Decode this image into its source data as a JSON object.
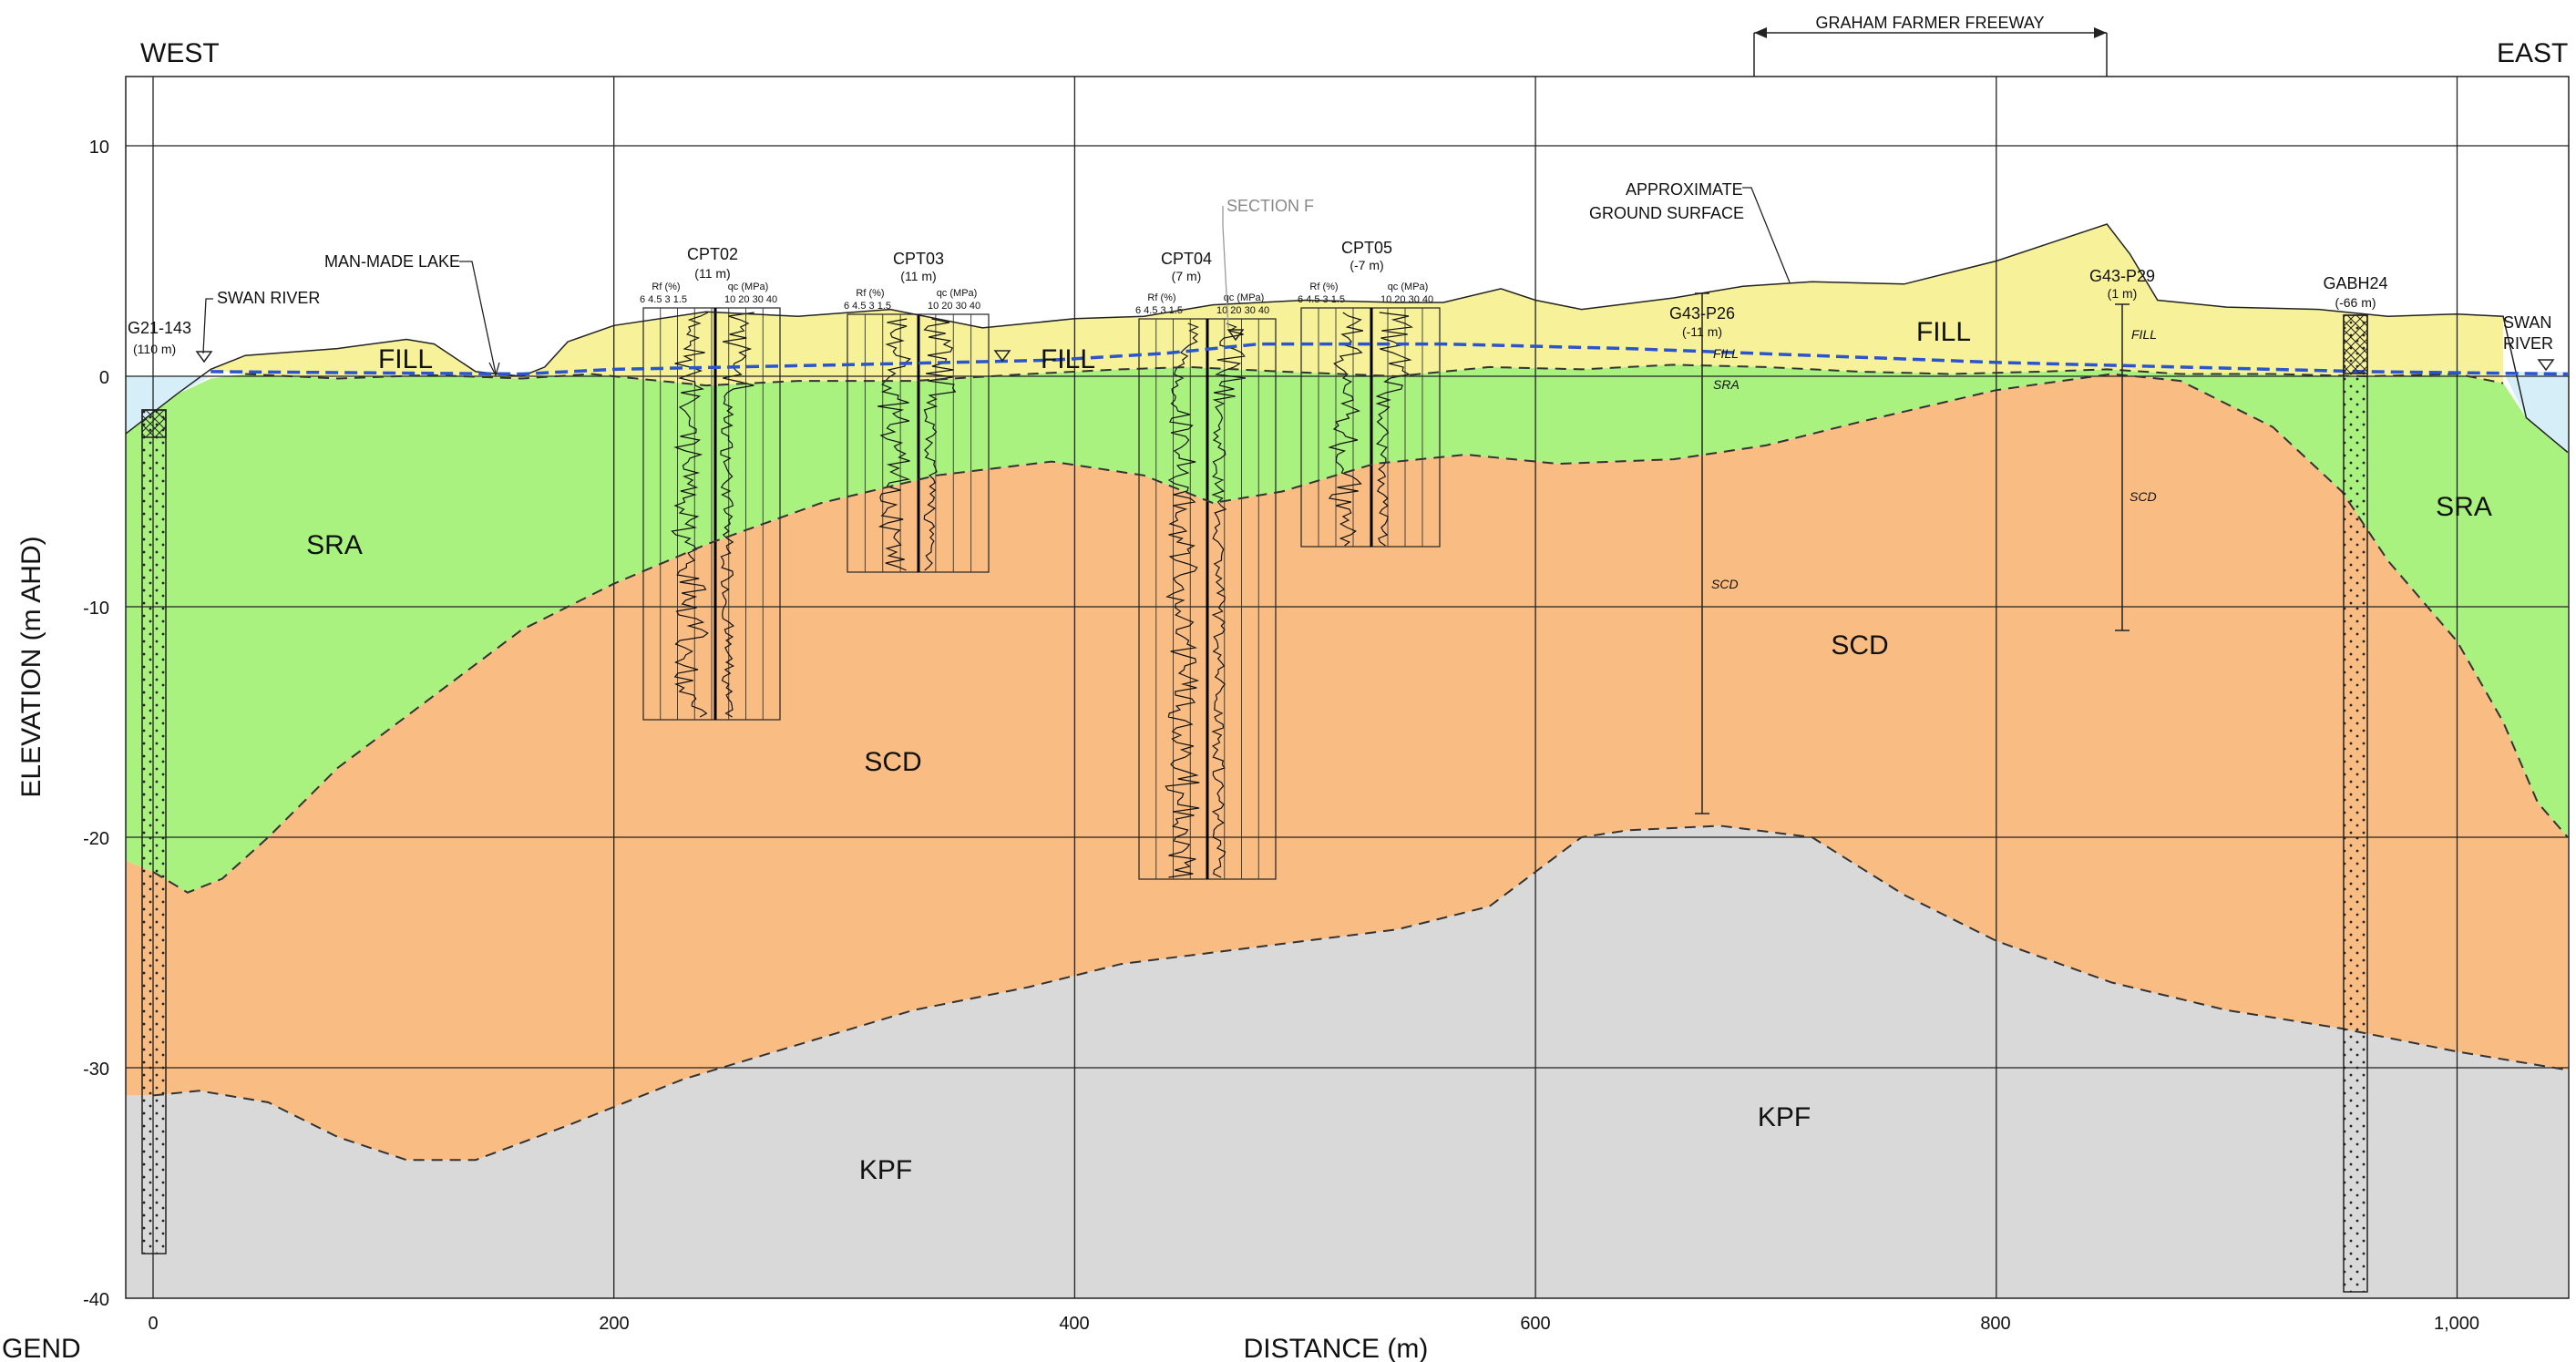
{
  "header": {
    "west": "WEST",
    "east": "EAST",
    "freeway": "GRAHAM FARMER FREEWAY"
  },
  "axes": {
    "xlabel": "DISTANCE (m)",
    "ylabel": "ELEVATION (m AHD)",
    "x_ticks": [
      "0",
      "200",
      "400",
      "600",
      "800",
      "1,000"
    ],
    "y_ticks": [
      "10",
      "0",
      "-10",
      "-20",
      "-30",
      "-40"
    ],
    "xlim": [
      -12,
      1048
    ],
    "ylim": [
      -40,
      13
    ]
  },
  "legend_fragment": "GEND",
  "colors": {
    "fill": "#f7f29a",
    "sra": "#a9f27f",
    "scd": "#f9bd84",
    "kpf": "#d9d9d9",
    "water": "#d6eef7",
    "water_table": "#2a55cc"
  },
  "units": [
    {
      "key": "FILL",
      "label": "FILL"
    },
    {
      "key": "SRA",
      "label": "SRA"
    },
    {
      "key": "SCD",
      "label": "SCD"
    },
    {
      "key": "KPF",
      "label": "KPF"
    }
  ],
  "annotations": {
    "swan_river_left": "SWAN RIVER",
    "swan_river_right_1": "SWAN",
    "swan_river_right_2": "RIVER",
    "man_made_lake": "MAN-MADE LAKE",
    "section_f": "SECTION F",
    "ground_surface_1": "APPROXIMATE",
    "ground_surface_2": "GROUND SURFACE"
  },
  "boreholes": [
    {
      "id": "G21-143",
      "offset": "(110 m)"
    },
    {
      "id": "G43-P26",
      "offset": "(-11 m)"
    },
    {
      "id": "G43-P29",
      "offset": "(1 m)"
    },
    {
      "id": "GABH24",
      "offset": "(-66 m)"
    }
  ],
  "cpts": [
    {
      "id": "CPT02",
      "offset": "(11 m)"
    },
    {
      "id": "CPT03",
      "offset": "(11 m)"
    },
    {
      "id": "CPT04",
      "offset": "(7 m)"
    },
    {
      "id": "CPT05",
      "offset": "(-7 m)"
    }
  ],
  "cpt_axis": {
    "rf_label": "Rf (%)",
    "qc_label": "qc (MPa)",
    "rf_ticks": "6  4.5  3  1.5",
    "qc_ticks": "10  20  30  40"
  },
  "log_labels": {
    "p26_fill": "FILL",
    "p26_sra": "SRA",
    "p26_scd": "SCD",
    "p29_fill": "FILL",
    "p29_scd": "SCD"
  },
  "chart_data": {
    "type": "geological cross-section",
    "xlabel": "DISTANCE (m)",
    "ylabel": "ELEVATION (m AHD)",
    "xlim": [
      -12,
      1048
    ],
    "ylim": [
      -40,
      13
    ],
    "ground_surface": [
      [
        -12,
        -2.5
      ],
      [
        10,
        -0.8
      ],
      [
        25,
        0.3
      ],
      [
        40,
        0.9
      ],
      [
        80,
        1.2
      ],
      [
        110,
        1.6
      ],
      [
        122,
        1.4
      ],
      [
        140,
        0.2
      ],
      [
        160,
        0
      ],
      [
        170,
        0.4
      ],
      [
        180,
        1.5
      ],
      [
        200,
        2.2
      ],
      [
        240,
        2.8
      ],
      [
        280,
        2.6
      ],
      [
        320,
        2.9
      ],
      [
        360,
        2.1
      ],
      [
        400,
        2.5
      ],
      [
        430,
        2.6
      ],
      [
        460,
        3.1
      ],
      [
        500,
        3.3
      ],
      [
        540,
        3.2
      ],
      [
        560,
        3.2
      ],
      [
        585,
        3.8
      ],
      [
        600,
        3.3
      ],
      [
        620,
        2.9
      ],
      [
        660,
        3.4
      ],
      [
        690,
        3.9
      ],
      [
        720,
        4.1
      ],
      [
        760,
        4.0
      ],
      [
        800,
        5.0
      ],
      [
        830,
        6.0
      ],
      [
        848,
        6.6
      ],
      [
        858,
        5.3
      ],
      [
        870,
        3.3
      ],
      [
        900,
        3.0
      ],
      [
        940,
        2.9
      ],
      [
        970,
        2.6
      ],
      [
        1000,
        2.7
      ],
      [
        1020,
        2.6
      ],
      [
        1030,
        -1.8
      ],
      [
        1048,
        -3.3
      ]
    ],
    "fill_base": [
      [
        -12,
        -0.3
      ],
      [
        40,
        0.1
      ],
      [
        80,
        -0.1
      ],
      [
        120,
        0.05
      ],
      [
        160,
        -0.1
      ],
      [
        190,
        0.1
      ],
      [
        240,
        -0.4
      ],
      [
        280,
        -0.2
      ],
      [
        330,
        -0.2
      ],
      [
        380,
        0.1
      ],
      [
        420,
        0.3
      ],
      [
        450,
        0.4
      ],
      [
        490,
        0.2
      ],
      [
        540,
        0
      ],
      [
        580,
        0.4
      ],
      [
        620,
        0.3
      ],
      [
        660,
        0.5
      ],
      [
        700,
        0.4
      ],
      [
        740,
        0.2
      ],
      [
        780,
        0.1
      ],
      [
        820,
        0.2
      ],
      [
        848,
        0.3
      ],
      [
        880,
        0.1
      ],
      [
        920,
        0.1
      ],
      [
        960,
        0
      ],
      [
        1000,
        0.1
      ],
      [
        1020,
        -0.3
      ]
    ],
    "sra_base": [
      [
        0,
        -21.5
      ],
      [
        15,
        -22.4
      ],
      [
        30,
        -21.8
      ],
      [
        50,
        -20
      ],
      [
        80,
        -17
      ],
      [
        120,
        -14
      ],
      [
        160,
        -11
      ],
      [
        200,
        -9
      ],
      [
        240,
        -7.3
      ],
      [
        290,
        -5.5
      ],
      [
        340,
        -4.3
      ],
      [
        390,
        -3.7
      ],
      [
        430,
        -4.3
      ],
      [
        460,
        -5.5
      ],
      [
        490,
        -5
      ],
      [
        530,
        -3.8
      ],
      [
        570,
        -3.4
      ],
      [
        610,
        -3.8
      ],
      [
        660,
        -3.6
      ],
      [
        700,
        -3
      ],
      [
        740,
        -2
      ],
      [
        800,
        -0.6
      ],
      [
        850,
        0.1
      ],
      [
        880,
        -0.2
      ],
      [
        920,
        -2.2
      ],
      [
        950,
        -5
      ],
      [
        970,
        -8
      ],
      [
        1000,
        -11.5
      ],
      [
        1020,
        -15
      ],
      [
        1035,
        -18.5
      ],
      [
        1048,
        -20
      ]
    ],
    "scd_base": [
      [
        0,
        -31.2
      ],
      [
        20,
        -31
      ],
      [
        50,
        -31.5
      ],
      [
        80,
        -33
      ],
      [
        110,
        -34
      ],
      [
        140,
        -34
      ],
      [
        180,
        -32.5
      ],
      [
        230,
        -30.5
      ],
      [
        280,
        -29
      ],
      [
        330,
        -27.5
      ],
      [
        380,
        -26.5
      ],
      [
        420,
        -25.5
      ],
      [
        460,
        -25
      ],
      [
        500,
        -24.5
      ],
      [
        540,
        -24
      ],
      [
        580,
        -23
      ],
      [
        600,
        -21.5
      ],
      [
        620,
        -20
      ],
      [
        640,
        -19.7
      ],
      [
        680,
        -19.5
      ],
      [
        720,
        -20
      ],
      [
        760,
        -22.5
      ],
      [
        800,
        -24.5
      ],
      [
        850,
        -26.3
      ],
      [
        900,
        -27.5
      ],
      [
        950,
        -28.3
      ],
      [
        1000,
        -29.3
      ],
      [
        1048,
        -30.1
      ]
    ],
    "water_table": [
      [
        25,
        0.2
      ],
      [
        160,
        0.1
      ],
      [
        200,
        0.3
      ],
      [
        300,
        0.5
      ],
      [
        390,
        0.7
      ],
      [
        440,
        1.0
      ],
      [
        480,
        1.4
      ],
      [
        560,
        1.4
      ],
      [
        640,
        1.2
      ],
      [
        720,
        0.9
      ],
      [
        800,
        0.6
      ],
      [
        880,
        0.4
      ],
      [
        960,
        0.2
      ],
      [
        1048,
        0.1
      ]
    ]
  }
}
